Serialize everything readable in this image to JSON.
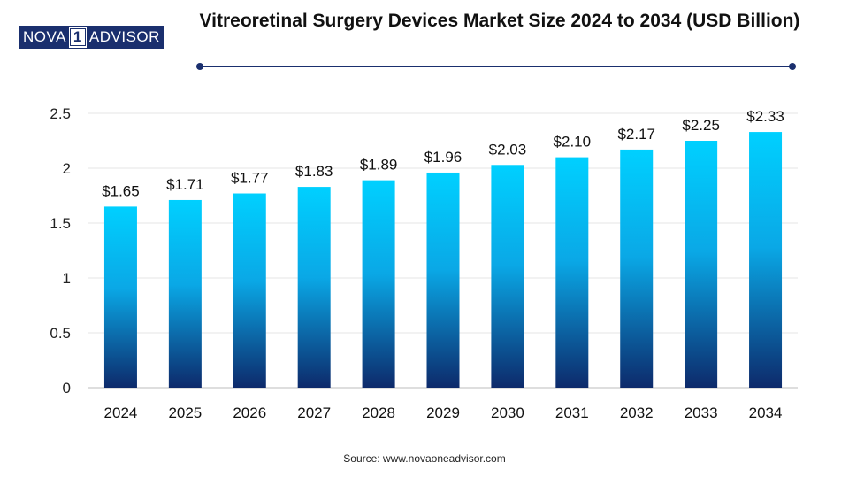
{
  "brand": {
    "logo_left": "NOVA",
    "logo_mid": "1",
    "logo_right": "ADVISOR"
  },
  "source": "Source: www.novaoneadvisor.com",
  "colors": {
    "bar_top": "#00d0ff",
    "bar_bottom": "#0d2a6b",
    "accent": "#1a2f6e"
  },
  "chart_data": {
    "type": "bar",
    "title": "Vitreoretinal Surgery Devices Market Size 2024 to 2034 (USD Billion)",
    "categories": [
      "2024",
      "2025",
      "2026",
      "2027",
      "2028",
      "2029",
      "2030",
      "2031",
      "2032",
      "2033",
      "2034"
    ],
    "values": [
      1.65,
      1.71,
      1.77,
      1.83,
      1.89,
      1.96,
      2.03,
      2.1,
      2.17,
      2.25,
      2.33
    ],
    "data_labels": [
      "$1.65",
      "$1.71",
      "$1.77",
      "$1.83",
      "$1.89",
      "$1.96",
      "$2.03",
      "$2.10",
      "$2.17",
      "$2.25",
      "$2.33"
    ],
    "yticks": [
      "0",
      "0.5",
      "1",
      "1.5",
      "2",
      "2.5"
    ],
    "ylim": [
      0,
      2.5
    ],
    "xlabel": "",
    "ylabel": "",
    "grid": true,
    "legend": "none"
  }
}
